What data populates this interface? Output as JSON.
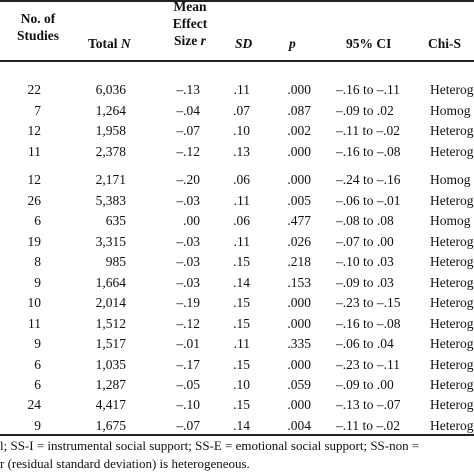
{
  "headers": {
    "studies_line1": "No. of",
    "studies_line2": "Studies",
    "total_n_text": "Total ",
    "total_n_italic": "N",
    "effect_line1": "Mean",
    "effect_line2": "Effect",
    "effect_line3_text": "Size ",
    "effect_line3_italic": "r",
    "sd": "SD",
    "p": "p",
    "ci": "95% CI",
    "chi": "Chi-S"
  },
  "group1": [
    {
      "studies": "22",
      "n": "6,036",
      "r": "–.13",
      "sd": ".11",
      "p": ".000",
      "ci": "–.16 to –.11",
      "chi": "Heterog"
    },
    {
      "studies": "7",
      "n": "1,264",
      "r": "–.04",
      "sd": ".07",
      "p": ".087",
      "ci": "–.09 to .02",
      "chi": "Homog"
    },
    {
      "studies": "12",
      "n": "1,958",
      "r": "–.07",
      "sd": ".10",
      "p": ".002",
      "ci": "–.11 to –.02",
      "chi": "Heterog"
    },
    {
      "studies": "11",
      "n": "2,378",
      "r": "–.12",
      "sd": ".13",
      "p": ".000",
      "ci": "–.16 to –.08",
      "chi": "Heterog"
    }
  ],
  "group2": [
    {
      "studies": "12",
      "n": "2,171",
      "r": "–.20",
      "sd": ".06",
      "p": ".000",
      "ci": "–.24 to –.16",
      "chi": "Homog"
    },
    {
      "studies": "26",
      "n": "5,383",
      "r": "–.03",
      "sd": ".11",
      "p": ".005",
      "ci": "–.06 to –.01",
      "chi": "Heterog"
    },
    {
      "studies": "6",
      "n": "635",
      "r": ".00",
      "sd": ".06",
      "p": ".477",
      "ci": "–.08 to .08",
      "chi": "Homog"
    },
    {
      "studies": "19",
      "n": "3,315",
      "r": "–.03",
      "sd": ".11",
      "p": ".026",
      "ci": "–.07 to .00",
      "chi": "Heterog"
    },
    {
      "studies": "8",
      "n": "985",
      "r": "–.03",
      "sd": ".15",
      "p": ".218",
      "ci": "–.10 to .03",
      "chi": "Heterog"
    },
    {
      "studies": "9",
      "n": "1,664",
      "r": "–.03",
      "sd": ".14",
      "p": ".153",
      "ci": "–.09 to .03",
      "chi": "Heterog"
    },
    {
      "studies": "10",
      "n": "2,014",
      "r": "–.19",
      "sd": ".15",
      "p": ".000",
      "ci": "–.23 to –.15",
      "chi": "Heterog"
    },
    {
      "studies": "11",
      "n": "1,512",
      "r": "–.12",
      "sd": ".15",
      "p": ".000",
      "ci": "–.16 to –.08",
      "chi": "Heterog"
    },
    {
      "studies": "9",
      "n": "1,517",
      "r": "–.01",
      "sd": ".11",
      "p": ".335",
      "ci": "–.06 to .04",
      "chi": "Heterog"
    },
    {
      "studies": "6",
      "n": "1,035",
      "r": "–.17",
      "sd": ".15",
      "p": ".000",
      "ci": "–.23 to –.11",
      "chi": "Heterog"
    },
    {
      "studies": "6",
      "n": "1,287",
      "r": "–.05",
      "sd": ".10",
      "p": ".059",
      "ci": "–.09 to .00",
      "chi": "Heterog"
    }
  ],
  "group3": [
    {
      "studies": "24",
      "n": "4,417",
      "r": "–.10",
      "sd": ".15",
      "p": ".000",
      "ci": "–.13 to –.07",
      "chi": "Heterog"
    },
    {
      "studies": "9",
      "n": "1,675",
      "r": "–.07",
      "sd": ".14",
      "p": ".004",
      "ci": "–.11 to –.02",
      "chi": "Heterog"
    }
  ],
  "footnote": {
    "line1": "l; SS-I = instrumental social support; SS-E = emotional social support; SS-non =",
    "line2": "r (residual standard deviation) is heterogeneous."
  }
}
